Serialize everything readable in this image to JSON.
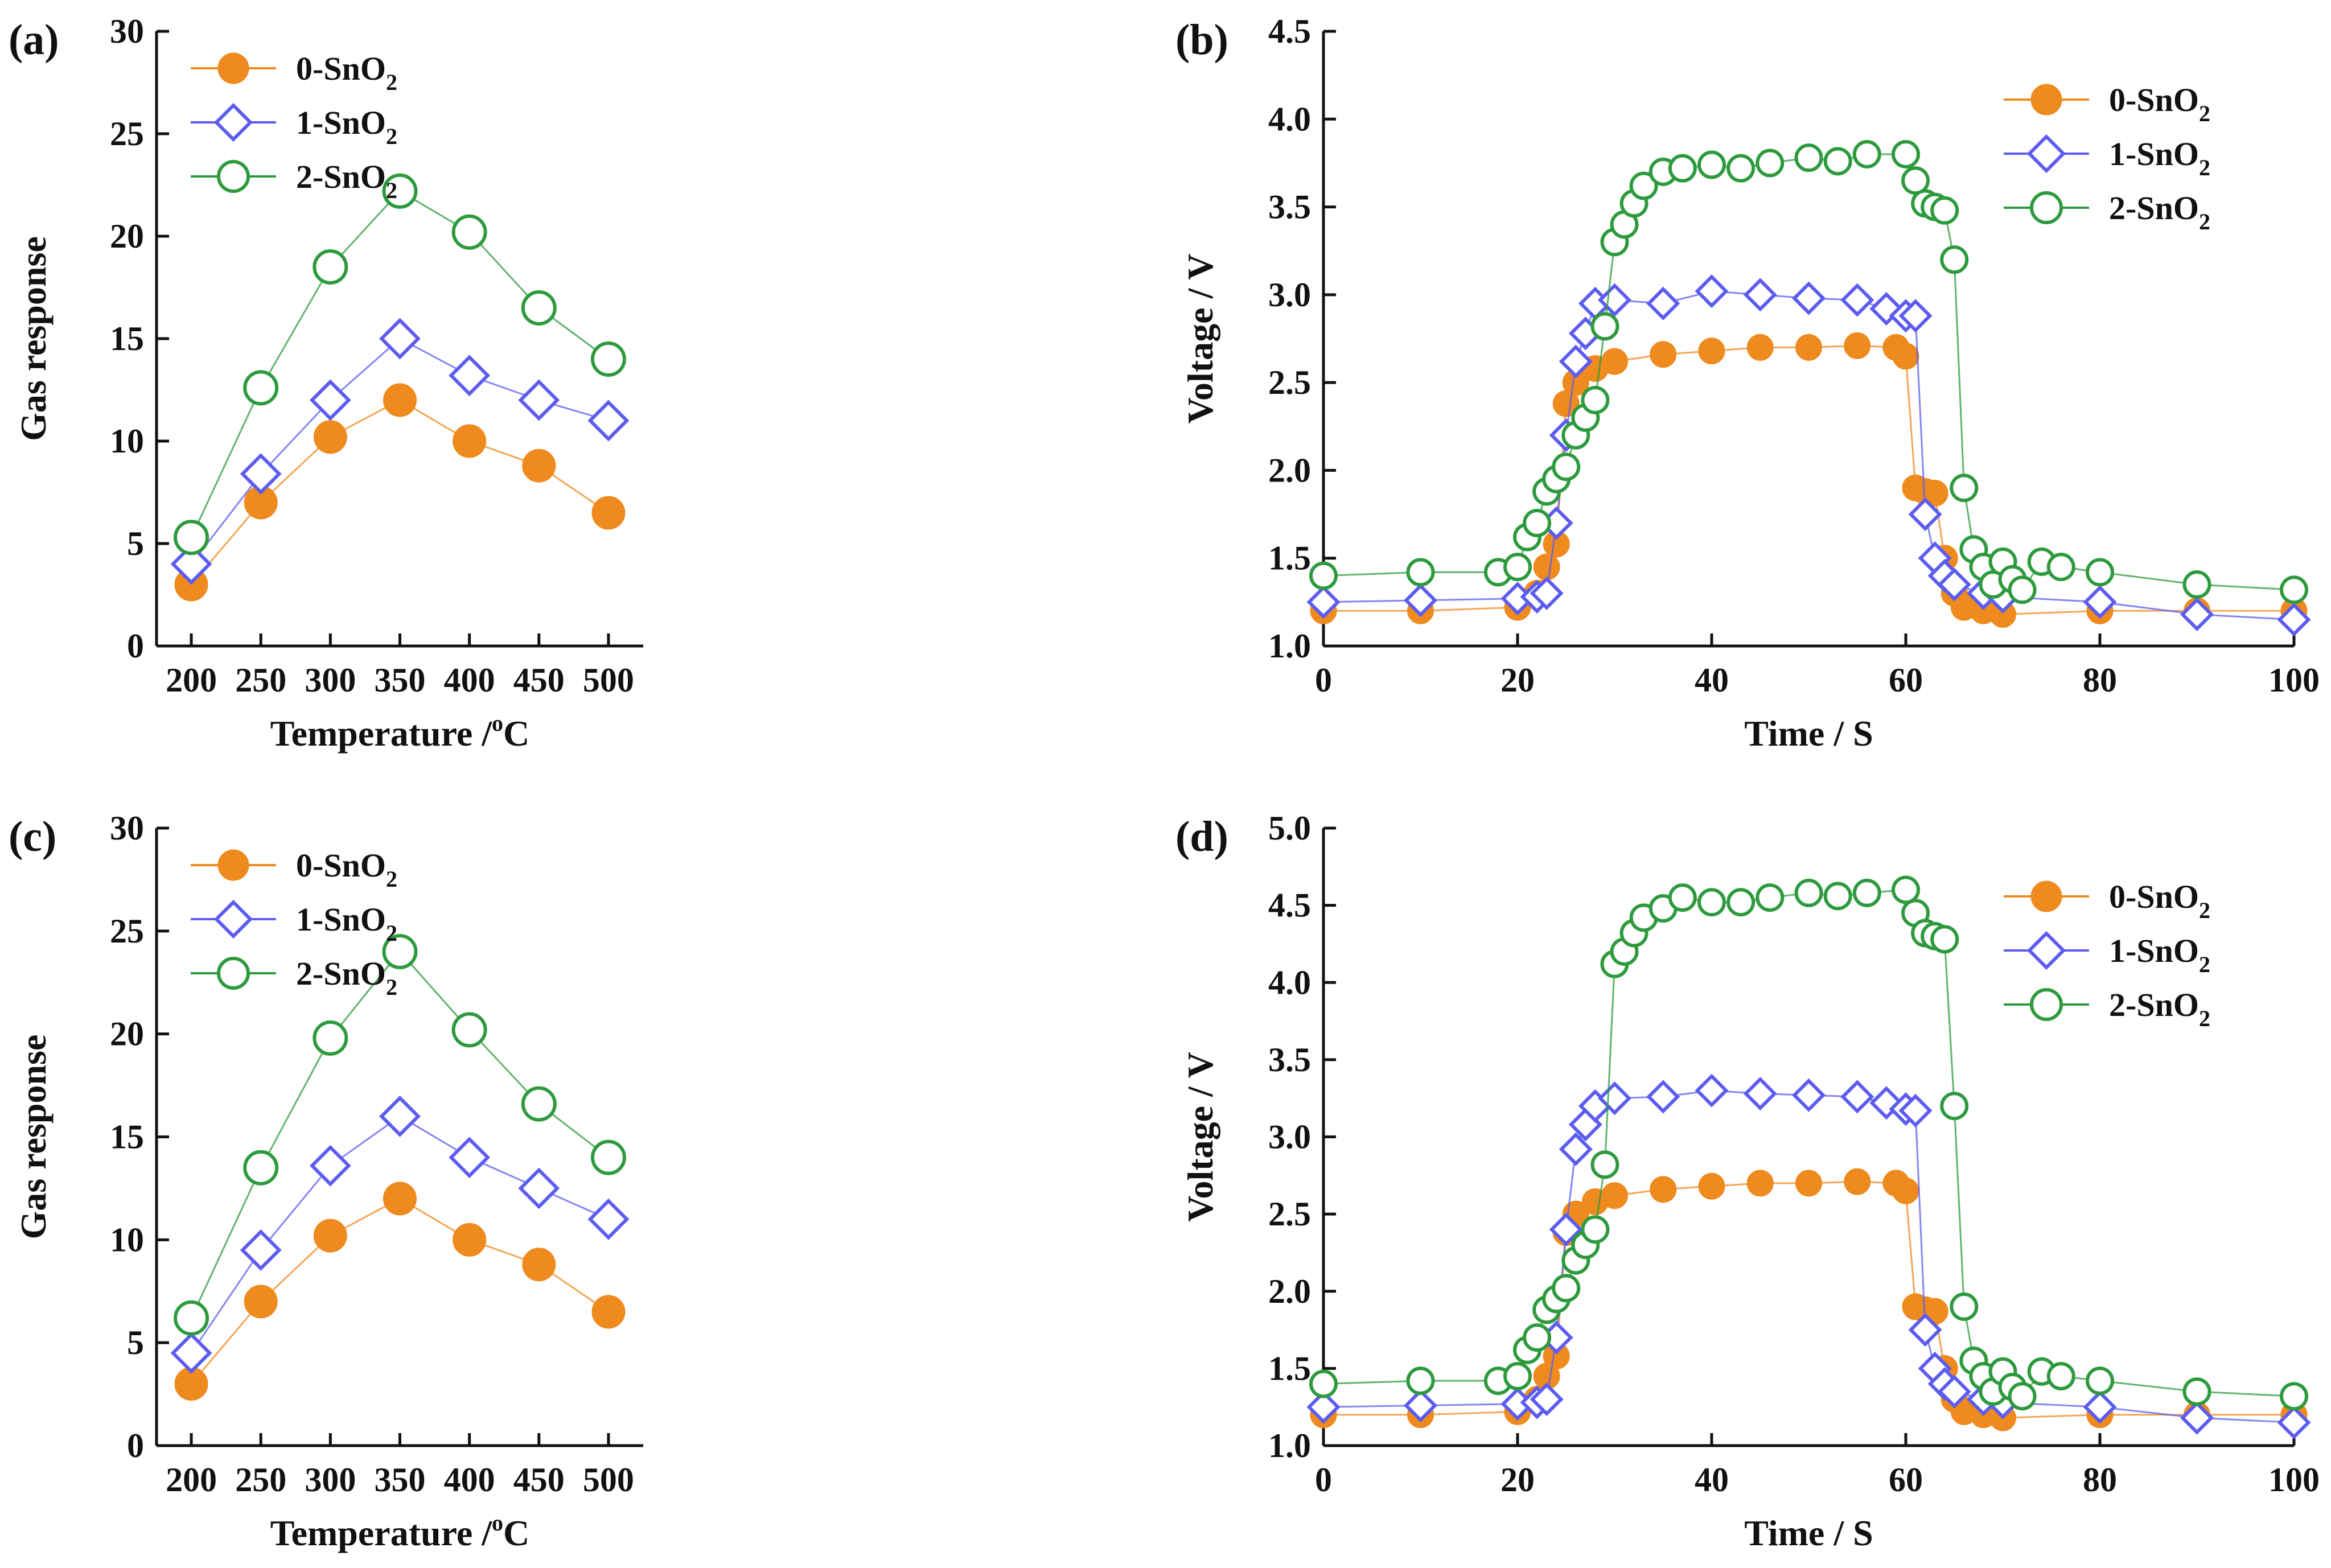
{
  "colors": {
    "s0": "#EE8A1E",
    "s1": "#5C5CF0",
    "s2": "#2E9A3E",
    "axis": "#111111"
  },
  "chart_data": [
    {
      "panel": "(a)",
      "type": "line",
      "xlabel": "Temperature /",
      "xlabel_sup": "o",
      "xlabel_unit": "C",
      "ylabel": "Gas response",
      "xlim": [
        175,
        525
      ],
      "ylim": [
        0,
        30
      ],
      "xticks": [
        200,
        250,
        300,
        350,
        400,
        450,
        500
      ],
      "yticks": [
        0,
        5,
        10,
        15,
        20,
        25,
        30
      ],
      "legend_position": "top-left",
      "x": [
        200,
        250,
        300,
        350,
        400,
        450,
        500
      ],
      "series": [
        {
          "name": "0-SnO",
          "sub": "2",
          "marker": "circle-filled",
          "values": [
            3,
            7,
            10.2,
            12,
            10,
            8.8,
            6.5
          ]
        },
        {
          "name": "1-SnO",
          "sub": "2",
          "marker": "diamond-open",
          "values": [
            4,
            8.4,
            12,
            15,
            13.2,
            12,
            11
          ]
        },
        {
          "name": "2-SnO",
          "sub": "2",
          "marker": "circle-open",
          "values": [
            5.3,
            12.6,
            18.5,
            22.2,
            20.2,
            16.5,
            14
          ]
        }
      ]
    },
    {
      "panel": "(b)",
      "type": "scatter-line",
      "xlabel": "Time / S",
      "ylabel": "Voltage / V",
      "xlim": [
        0,
        100
      ],
      "ylim": [
        1.0,
        4.5
      ],
      "xticks": [
        0,
        20,
        40,
        60,
        80,
        100
      ],
      "yticks": [
        "1.0",
        "1.5",
        "2.0",
        "2.5",
        "3.0",
        "3.5",
        "4.0",
        "4.5"
      ],
      "legend_position": "top-right",
      "series": [
        {
          "name": "0-SnO",
          "sub": "2",
          "marker": "circle-filled",
          "points": [
            [
              0,
              1.2
            ],
            [
              10,
              1.2
            ],
            [
              20,
              1.22
            ],
            [
              22,
              1.3
            ],
            [
              23,
              1.45
            ],
            [
              24,
              1.58
            ],
            [
              25,
              2.38
            ],
            [
              26,
              2.5
            ],
            [
              28,
              2.58
            ],
            [
              30,
              2.62
            ],
            [
              35,
              2.66
            ],
            [
              40,
              2.68
            ],
            [
              45,
              2.7
            ],
            [
              50,
              2.7
            ],
            [
              55,
              2.71
            ],
            [
              59,
              2.7
            ],
            [
              60,
              2.65
            ],
            [
              61,
              1.9
            ],
            [
              62,
              1.88
            ],
            [
              63,
              1.87
            ],
            [
              64,
              1.5
            ],
            [
              65,
              1.3
            ],
            [
              66,
              1.22
            ],
            [
              68,
              1.2
            ],
            [
              70,
              1.18
            ],
            [
              80,
              1.2
            ],
            [
              90,
              1.2
            ],
            [
              100,
              1.2
            ]
          ]
        },
        {
          "name": "1-SnO",
          "sub": "2",
          "marker": "diamond-open",
          "points": [
            [
              0,
              1.25
            ],
            [
              10,
              1.26
            ],
            [
              20,
              1.27
            ],
            [
              22,
              1.28
            ],
            [
              23,
              1.3
            ],
            [
              24,
              1.7
            ],
            [
              25,
              2.2
            ],
            [
              26,
              2.62
            ],
            [
              27,
              2.78
            ],
            [
              28,
              2.95
            ],
            [
              30,
              2.97
            ],
            [
              35,
              2.95
            ],
            [
              40,
              3.02
            ],
            [
              45,
              3.0
            ],
            [
              50,
              2.98
            ],
            [
              55,
              2.97
            ],
            [
              58,
              2.92
            ],
            [
              60,
              2.88
            ],
            [
              61,
              2.88
            ],
            [
              62,
              1.75
            ],
            [
              63,
              1.5
            ],
            [
              64,
              1.4
            ],
            [
              65,
              1.35
            ],
            [
              68,
              1.3
            ],
            [
              70,
              1.28
            ],
            [
              80,
              1.25
            ],
            [
              90,
              1.18
            ],
            [
              100,
              1.15
            ]
          ]
        },
        {
          "name": "2-SnO",
          "sub": "2",
          "marker": "circle-open",
          "points": [
            [
              0,
              1.4
            ],
            [
              10,
              1.42
            ],
            [
              18,
              1.42
            ],
            [
              20,
              1.45
            ],
            [
              21,
              1.62
            ],
            [
              22,
              1.7
            ],
            [
              23,
              1.88
            ],
            [
              24,
              1.95
            ],
            [
              25,
              2.02
            ],
            [
              26,
              2.2
            ],
            [
              27,
              2.3
            ],
            [
              28,
              2.4
            ],
            [
              29,
              2.82
            ],
            [
              30,
              3.3
            ],
            [
              31,
              3.4
            ],
            [
              32,
              3.52
            ],
            [
              33,
              3.62
            ],
            [
              35,
              3.7
            ],
            [
              37,
              3.72
            ],
            [
              40,
              3.74
            ],
            [
              43,
              3.72
            ],
            [
              46,
              3.75
            ],
            [
              50,
              3.78
            ],
            [
              53,
              3.76
            ],
            [
              56,
              3.8
            ],
            [
              60,
              3.8
            ],
            [
              61,
              3.65
            ],
            [
              62,
              3.52
            ],
            [
              63,
              3.5
            ],
            [
              64,
              3.48
            ],
            [
              65,
              3.2
            ],
            [
              66,
              1.9
            ],
            [
              67,
              1.55
            ],
            [
              68,
              1.45
            ],
            [
              69,
              1.35
            ],
            [
              70,
              1.48
            ],
            [
              71,
              1.38
            ],
            [
              72,
              1.32
            ],
            [
              74,
              1.48
            ],
            [
              76,
              1.45
            ],
            [
              80,
              1.42
            ],
            [
              90,
              1.35
            ],
            [
              100,
              1.32
            ]
          ]
        }
      ]
    },
    {
      "panel": "(c)",
      "type": "line",
      "xlabel": "Temperature /",
      "xlabel_sup": "o",
      "xlabel_unit": "C",
      "ylabel": "Gas response",
      "xlim": [
        175,
        525
      ],
      "ylim": [
        0,
        30
      ],
      "xticks": [
        200,
        250,
        300,
        350,
        400,
        450,
        500
      ],
      "yticks": [
        0,
        5,
        10,
        15,
        20,
        25,
        30
      ],
      "legend_position": "top-left",
      "x": [
        200,
        250,
        300,
        350,
        400,
        450,
        500
      ],
      "series": [
        {
          "name": "0-SnO",
          "sub": "2",
          "marker": "circle-filled",
          "values": [
            3,
            7,
            10.2,
            12,
            10,
            8.8,
            6.5
          ]
        },
        {
          "name": "1-SnO",
          "sub": "2",
          "marker": "diamond-open",
          "values": [
            4.5,
            9.5,
            13.6,
            16,
            14,
            12.5,
            11
          ]
        },
        {
          "name": "2-SnO",
          "sub": "2",
          "marker": "circle-open",
          "values": [
            6.2,
            13.5,
            19.8,
            24,
            20.2,
            16.6,
            14
          ]
        }
      ]
    },
    {
      "panel": "(d)",
      "type": "scatter-line",
      "xlabel": "Time / S",
      "ylabel": "Voltage / V",
      "xlim": [
        0,
        100
      ],
      "ylim": [
        1.0,
        5.0
      ],
      "xticks": [
        0,
        20,
        40,
        60,
        80,
        100
      ],
      "yticks": [
        "1.0",
        "1.5",
        "2.0",
        "2.5",
        "3.0",
        "3.5",
        "4.0",
        "4.5",
        "5.0"
      ],
      "legend_position": "top-right",
      "series": [
        {
          "name": "0-SnO",
          "sub": "2",
          "marker": "circle-filled",
          "points": [
            [
              0,
              1.2
            ],
            [
              10,
              1.2
            ],
            [
              20,
              1.22
            ],
            [
              22,
              1.3
            ],
            [
              23,
              1.45
            ],
            [
              24,
              1.58
            ],
            [
              25,
              2.38
            ],
            [
              26,
              2.5
            ],
            [
              28,
              2.58
            ],
            [
              30,
              2.62
            ],
            [
              35,
              2.66
            ],
            [
              40,
              2.68
            ],
            [
              45,
              2.7
            ],
            [
              50,
              2.7
            ],
            [
              55,
              2.71
            ],
            [
              59,
              2.7
            ],
            [
              60,
              2.65
            ],
            [
              61,
              1.9
            ],
            [
              62,
              1.88
            ],
            [
              63,
              1.87
            ],
            [
              64,
              1.5
            ],
            [
              65,
              1.3
            ],
            [
              66,
              1.22
            ],
            [
              68,
              1.2
            ],
            [
              70,
              1.18
            ],
            [
              80,
              1.2
            ],
            [
              90,
              1.2
            ],
            [
              100,
              1.2
            ]
          ]
        },
        {
          "name": "1-SnO",
          "sub": "2",
          "marker": "diamond-open",
          "points": [
            [
              0,
              1.25
            ],
            [
              10,
              1.26
            ],
            [
              20,
              1.27
            ],
            [
              22,
              1.28
            ],
            [
              23,
              1.3
            ],
            [
              24,
              1.7
            ],
            [
              25,
              2.4
            ],
            [
              26,
              2.92
            ],
            [
              27,
              3.08
            ],
            [
              28,
              3.2
            ],
            [
              30,
              3.25
            ],
            [
              35,
              3.26
            ],
            [
              40,
              3.3
            ],
            [
              45,
              3.28
            ],
            [
              50,
              3.27
            ],
            [
              55,
              3.26
            ],
            [
              58,
              3.22
            ],
            [
              60,
              3.18
            ],
            [
              61,
              3.17
            ],
            [
              62,
              1.75
            ],
            [
              63,
              1.5
            ],
            [
              64,
              1.4
            ],
            [
              65,
              1.35
            ],
            [
              68,
              1.3
            ],
            [
              70,
              1.28
            ],
            [
              80,
              1.25
            ],
            [
              90,
              1.18
            ],
            [
              100,
              1.15
            ]
          ]
        },
        {
          "name": "2-SnO",
          "sub": "2",
          "marker": "circle-open",
          "points": [
            [
              0,
              1.4
            ],
            [
              10,
              1.42
            ],
            [
              18,
              1.42
            ],
            [
              20,
              1.45
            ],
            [
              21,
              1.62
            ],
            [
              22,
              1.7
            ],
            [
              23,
              1.88
            ],
            [
              24,
              1.95
            ],
            [
              25,
              2.02
            ],
            [
              26,
              2.2
            ],
            [
              27,
              2.3
            ],
            [
              28,
              2.4
            ],
            [
              29,
              2.82
            ],
            [
              30,
              4.12
            ],
            [
              31,
              4.2
            ],
            [
              32,
              4.32
            ],
            [
              33,
              4.42
            ],
            [
              35,
              4.48
            ],
            [
              37,
              4.55
            ],
            [
              40,
              4.52
            ],
            [
              43,
              4.52
            ],
            [
              46,
              4.55
            ],
            [
              50,
              4.58
            ],
            [
              53,
              4.56
            ],
            [
              56,
              4.58
            ],
            [
              60,
              4.6
            ],
            [
              61,
              4.45
            ],
            [
              62,
              4.32
            ],
            [
              63,
              4.3
            ],
            [
              64,
              4.28
            ],
            [
              65,
              3.2
            ],
            [
              66,
              1.9
            ],
            [
              67,
              1.55
            ],
            [
              68,
              1.45
            ],
            [
              69,
              1.35
            ],
            [
              70,
              1.48
            ],
            [
              71,
              1.38
            ],
            [
              72,
              1.32
            ],
            [
              74,
              1.48
            ],
            [
              76,
              1.45
            ],
            [
              80,
              1.42
            ],
            [
              90,
              1.35
            ],
            [
              100,
              1.32
            ]
          ]
        }
      ]
    }
  ]
}
